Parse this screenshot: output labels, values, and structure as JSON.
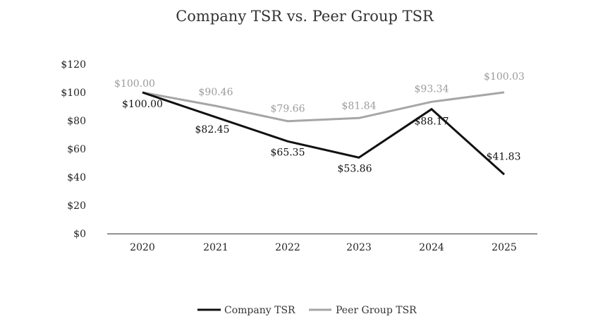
{
  "chart_data": {
    "type": "line",
    "title": "Company TSR vs. Peer Group TSR",
    "categories": [
      "2020",
      "2021",
      "2022",
      "2023",
      "2024",
      "2025"
    ],
    "ylim": [
      0,
      120
    ],
    "yticks": [
      "$0",
      "$20",
      "$40",
      "$60",
      "$80",
      "$100",
      "$120"
    ],
    "ytick_values": [
      0,
      20,
      40,
      60,
      80,
      100,
      120
    ],
    "grid": false,
    "legend_position": "bottom",
    "series": [
      {
        "name": "Company TSR",
        "color": "#111111",
        "values": [
          100.0,
          82.45,
          65.35,
          53.86,
          88.17,
          41.83
        ],
        "labels": [
          "$100.00",
          "$82.45",
          "$65.35",
          "$53.86",
          "$88.17",
          "$41.83"
        ]
      },
      {
        "name": "Peer Group TSR",
        "color": "#a6a6a6",
        "values": [
          100.0,
          90.46,
          79.66,
          81.84,
          93.34,
          100.03
        ],
        "labels": [
          "$100.00",
          "$90.46",
          "$79.66",
          "$81.84",
          "$93.34",
          "$100.03"
        ]
      }
    ]
  }
}
